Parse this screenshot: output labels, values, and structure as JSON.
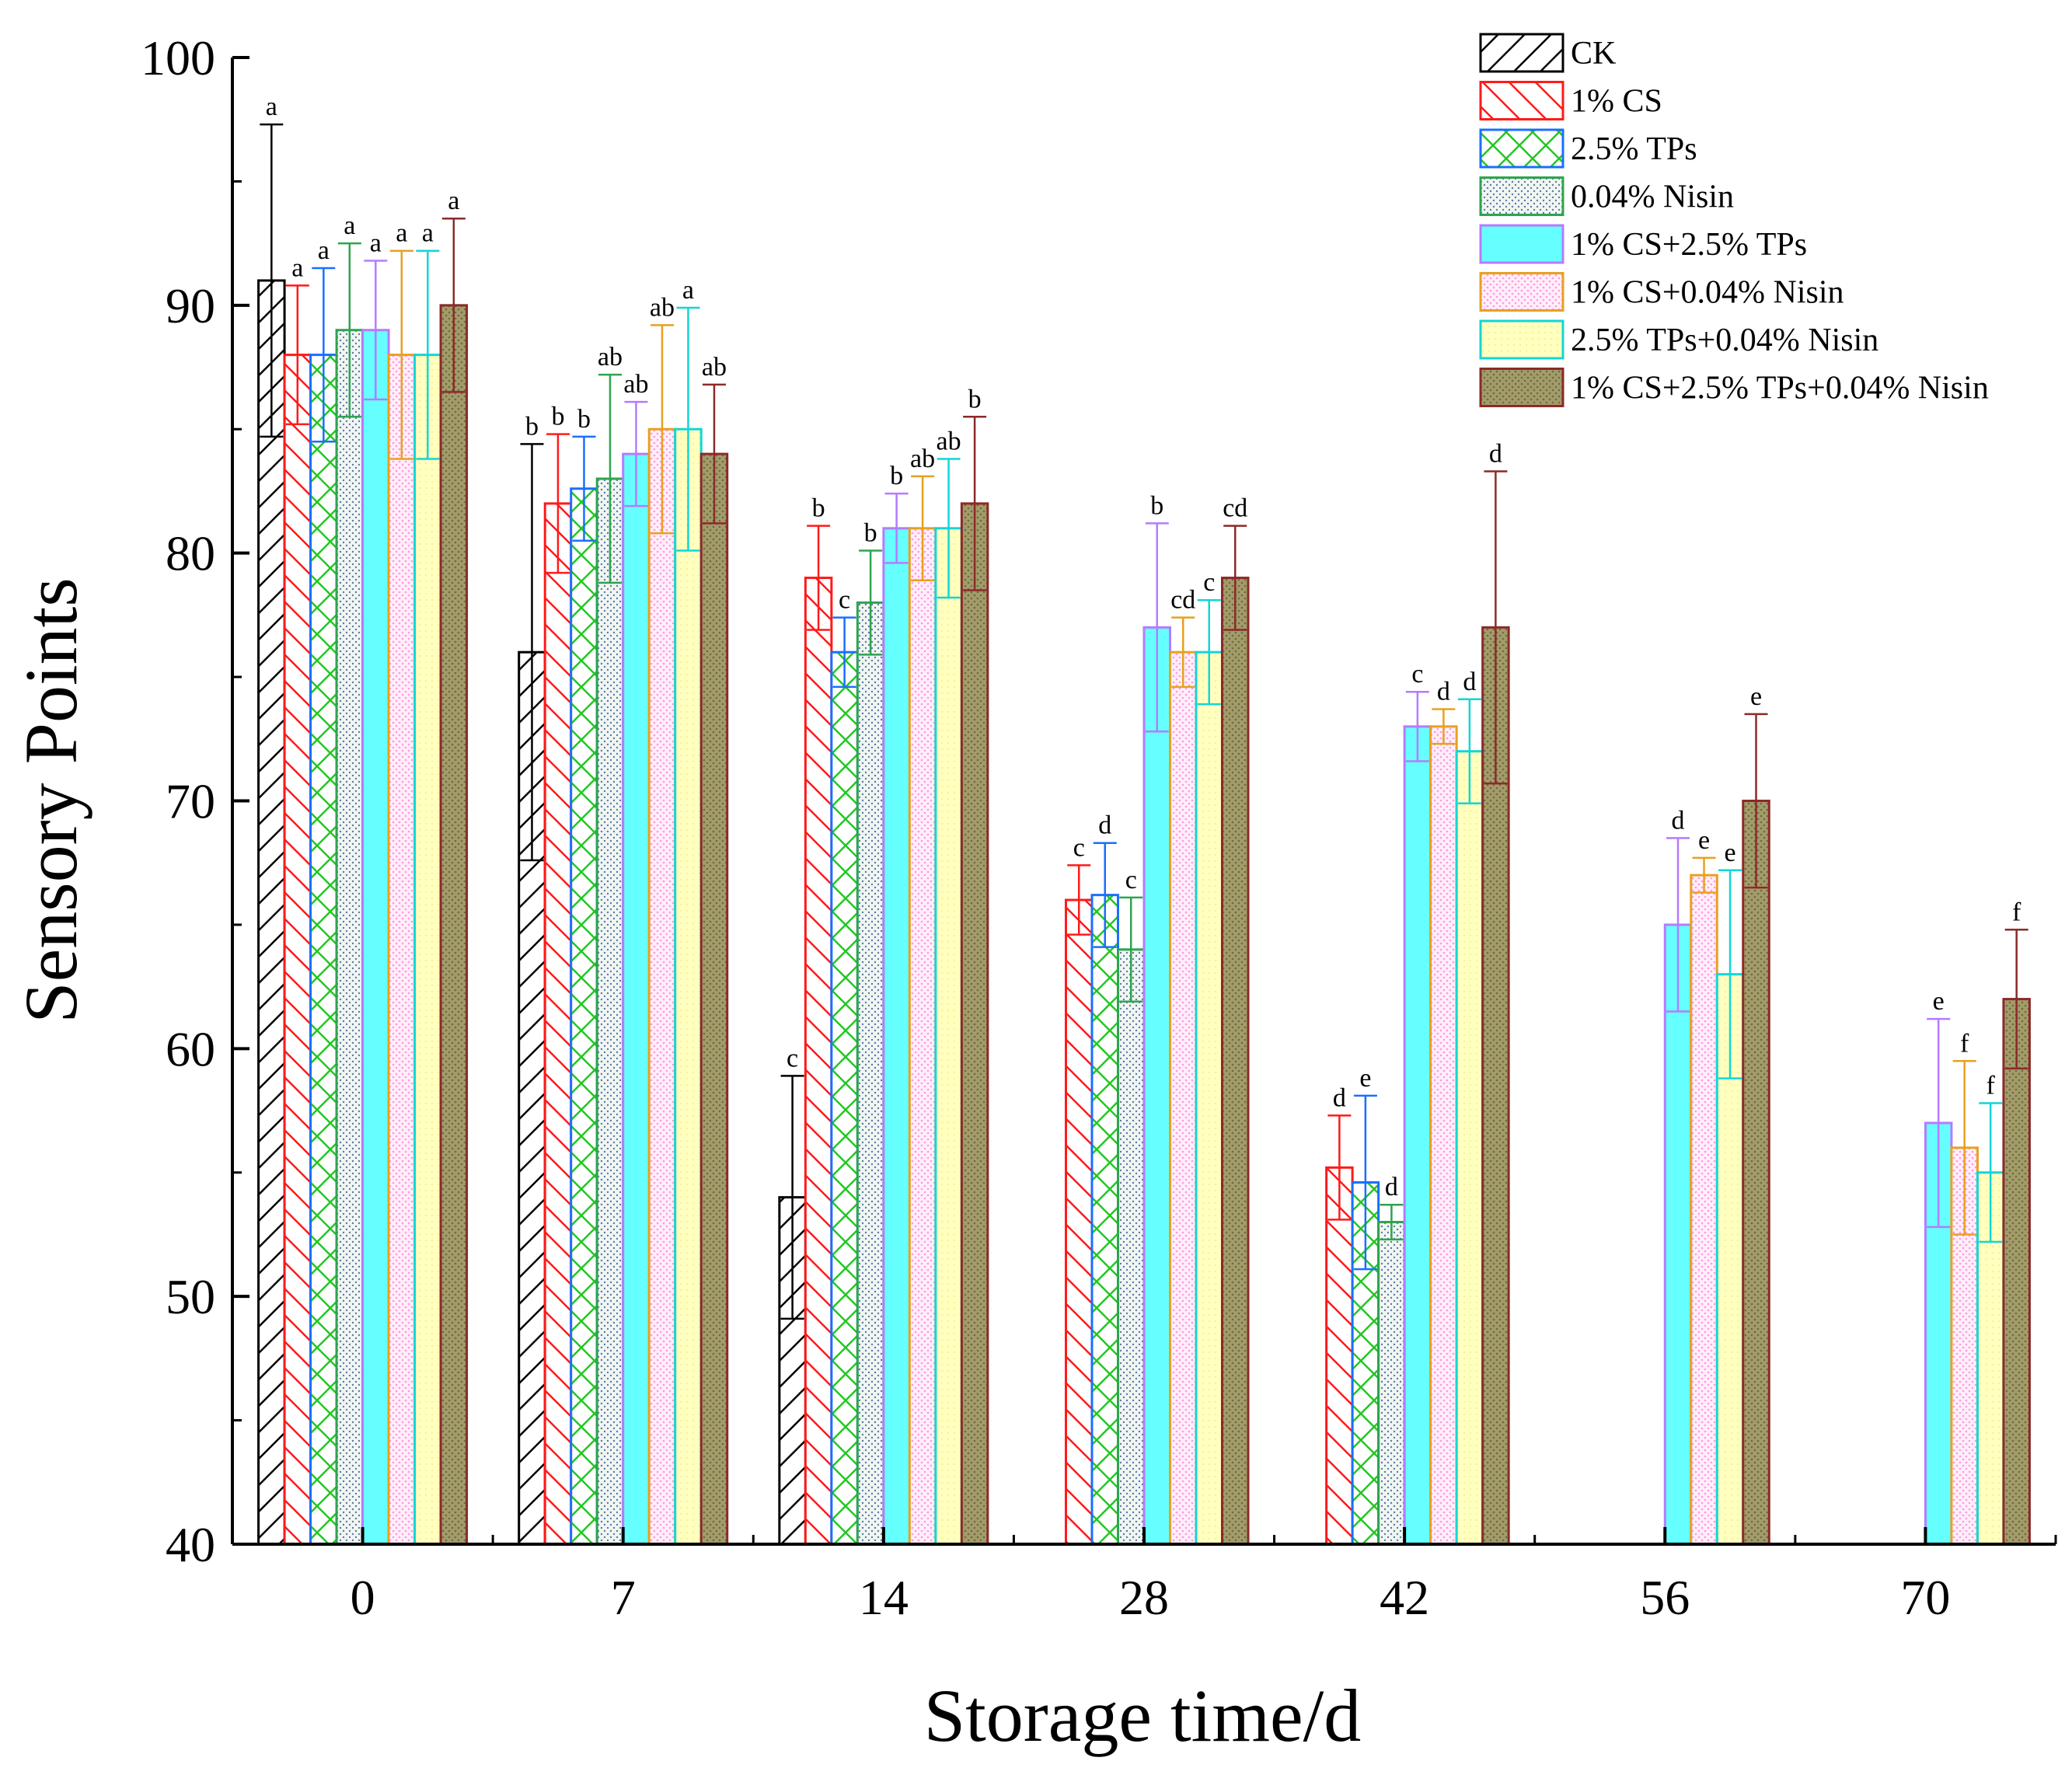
{
  "chart_data": {
    "type": "bar",
    "title": "",
    "xlabel": "Storage time/d",
    "ylabel": "Sensory Points",
    "ylim": [
      40,
      100
    ],
    "yticks": [
      40,
      50,
      60,
      70,
      80,
      90,
      100
    ],
    "categories": [
      "0",
      "7",
      "14",
      "28",
      "42",
      "56",
      "70"
    ],
    "legend_position": "top-right",
    "series": [
      {
        "name": "CK",
        "color": "#000000",
        "fill": "#ffffff",
        "pattern": "diag-right",
        "values": [
          91,
          76,
          54,
          null,
          null,
          null,
          null
        ],
        "errors": [
          6.3,
          8.4,
          4.9,
          null,
          null,
          null,
          null
        ],
        "letters": [
          "a",
          "b",
          "c",
          null,
          null,
          null,
          null
        ]
      },
      {
        "name": "1% CS",
        "color": "#ff1a1a",
        "fill": "#ffffff",
        "pattern": "diag-left",
        "values": [
          88,
          82,
          79,
          66,
          55.2,
          null,
          null
        ],
        "errors": [
          2.8,
          2.8,
          2.1,
          1.4,
          2.1,
          null,
          null
        ],
        "letters": [
          "a",
          "b",
          "b",
          "c",
          "d",
          null,
          null
        ]
      },
      {
        "name": "2.5% TPs",
        "color": "#1a6fff",
        "fill": "#ffffff",
        "pattern": "cross-green",
        "values": [
          88,
          82.6,
          76,
          66.2,
          54.6,
          null,
          null
        ],
        "errors": [
          3.5,
          2.1,
          1.4,
          2.1,
          3.5,
          null,
          null
        ],
        "letters": [
          "a",
          "b",
          "c",
          "d",
          "e",
          null,
          null
        ]
      },
      {
        "name": "0.04% Nisin",
        "color": "#2ea44f",
        "fill": "#eef4ee",
        "pattern": "dots",
        "values": [
          89,
          83,
          78,
          64,
          53,
          null,
          null
        ],
        "errors": [
          3.5,
          4.2,
          2.1,
          2.1,
          0.7,
          null,
          null
        ],
        "letters": [
          "a",
          "ab",
          "b",
          "c",
          "d",
          null,
          null
        ]
      },
      {
        "name": "1% CS+2.5% TPs",
        "color": "#b57bff",
        "fill": "#66ffff",
        "pattern": "solid",
        "values": [
          89,
          84,
          81,
          77,
          73,
          65,
          57
        ],
        "errors": [
          2.8,
          2.1,
          1.4,
          4.2,
          1.4,
          3.5,
          4.2
        ],
        "letters": [
          "a",
          "ab",
          "b",
          "b",
          "c",
          "d",
          "e"
        ]
      },
      {
        "name": "1% CS+0.04% Nisin",
        "color": "#e8a020",
        "fill": "#ffe6f6",
        "pattern": "pink-dots",
        "values": [
          88,
          85,
          81,
          76,
          73,
          67,
          56
        ],
        "errors": [
          4.2,
          4.2,
          2.1,
          1.4,
          0.7,
          0.7,
          3.5
        ],
        "letters": [
          "a",
          "ab",
          "ab",
          "cd",
          "d",
          "e",
          "f"
        ]
      },
      {
        "name": "2.5% TPs+0.04% Nisin",
        "color": "#12d6d6",
        "fill": "#ffffbf",
        "pattern": "light-yellow",
        "values": [
          88,
          85,
          81,
          76,
          72,
          63,
          55
        ],
        "errors": [
          4.2,
          4.9,
          2.8,
          2.1,
          2.1,
          4.2,
          2.8
        ],
        "letters": [
          "a",
          "a",
          "ab",
          "c",
          "d",
          "e",
          "f"
        ]
      },
      {
        "name": "1% CS+2.5% TPs+0.04% Nisin",
        "color": "#8b2a2a",
        "fill": "#9b9462",
        "pattern": "olive-dots",
        "values": [
          90,
          84,
          82,
          79,
          77,
          70,
          62
        ],
        "errors": [
          3.5,
          2.8,
          3.5,
          2.1,
          6.3,
          3.5,
          2.8
        ],
        "letters": [
          "a",
          "ab",
          "b",
          "cd",
          "d",
          "e",
          "f"
        ]
      }
    ]
  }
}
